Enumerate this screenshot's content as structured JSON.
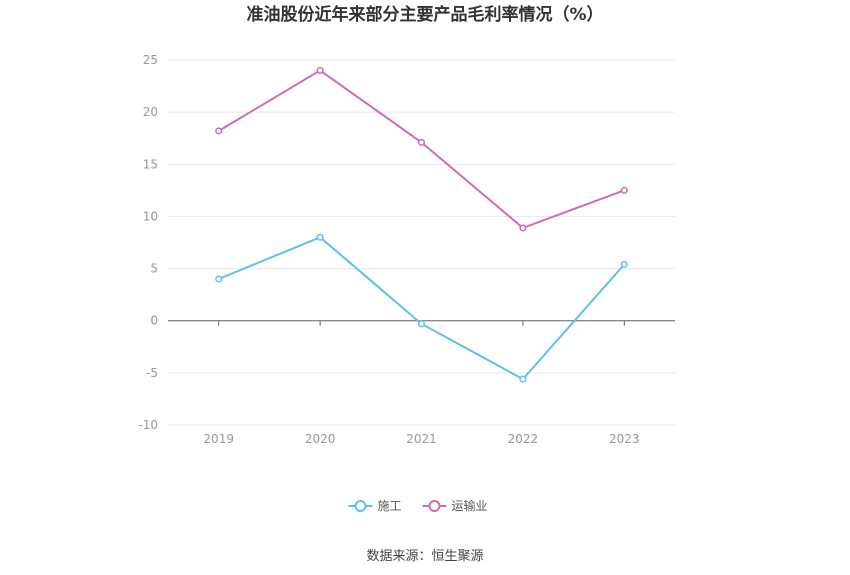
{
  "chart_data": {
    "type": "line",
    "title": "准油股份近年来部分主要产品毛利率情况（%）",
    "x": [
      "2019",
      "2020",
      "2021",
      "2022",
      "2023"
    ],
    "ylim": [
      -10,
      25
    ],
    "yticks": [
      -10,
      -5,
      0,
      5,
      10,
      15,
      20,
      25
    ],
    "grid": true,
    "legend_position": "bottom-center",
    "series": [
      {
        "name": "施工",
        "color": "#5bc0eb",
        "values": [
          4.0,
          8.0,
          -0.3,
          -5.6,
          5.4
        ]
      },
      {
        "name": "运输业",
        "color": "#d16ab4",
        "values": [
          18.2,
          24.0,
          17.1,
          8.9,
          12.5
        ]
      }
    ]
  },
  "source_text": "数据来源：恒生聚源"
}
